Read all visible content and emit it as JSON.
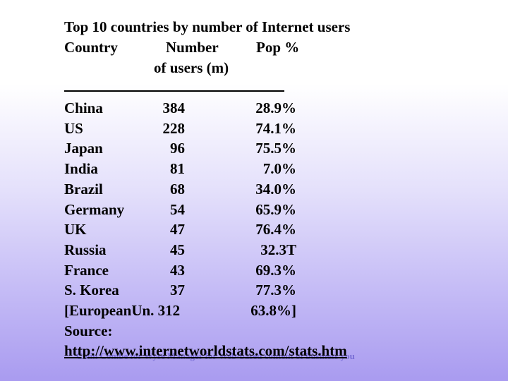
{
  "title": "Top 10 countries by number of Internet users",
  "headers": {
    "country": "Country",
    "number_line1": "Number",
    "number_line2": "of users (m)",
    "pop": "Pop %"
  },
  "rows": [
    {
      "country": "China",
      "users": "384",
      "pop": "28.9%"
    },
    {
      "country": "US",
      "users": "228",
      "pop": "74.1%"
    },
    {
      "country": "Japan",
      "users": "96",
      "pop": "75.5%"
    },
    {
      "country": "India",
      "users": "81",
      "pop": "7.0%"
    },
    {
      "country": "Brazil",
      "users": "68",
      "pop": "34.0%"
    },
    {
      "country": "Germany",
      "users": "54",
      "pop": "65.9%"
    },
    {
      "country": "UK",
      "users": "47",
      "pop": "76.4%"
    },
    {
      "country": "Russia",
      "users": "45",
      "pop": "32.3T"
    },
    {
      "country": "France",
      "users": "43",
      "pop": "69.3%"
    },
    {
      "country": "S. Korea",
      "users": "37",
      "pop": "77.3%"
    }
  ],
  "eu_row": {
    "label": "[European",
    "label2": "Un. 312",
    "pop": "63.8%]"
  },
  "source": {
    "label": "Source:",
    "url": "http://www.internetworldstats.com/stats.htm"
  },
  "footer_overlay": "Colin Combe for Wyse Manager for Web-based content of business you"
}
